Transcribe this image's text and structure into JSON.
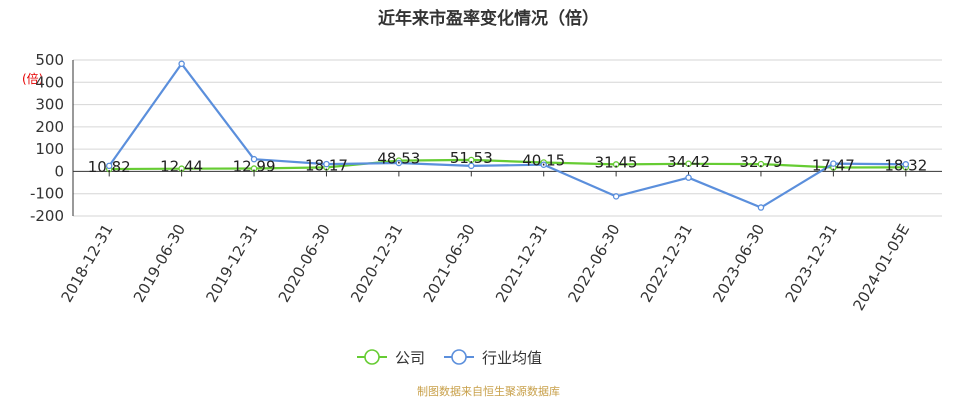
{
  "chart_data": {
    "type": "line",
    "title": "近年来市盈率变化情况（倍）",
    "ylabel": "(倍)",
    "categories": [
      "2018-12-31",
      "2019-06-30",
      "2019-12-31",
      "2020-06-30",
      "2020-12-31",
      "2021-06-30",
      "2021-12-31",
      "2022-06-30",
      "2022-12-31",
      "2023-06-30",
      "2023-12-31",
      "2024-01-05E"
    ],
    "ylim": [
      -200,
      500
    ],
    "yticks": [
      -200,
      -100,
      0,
      100,
      200,
      300,
      400,
      500
    ],
    "grid": true,
    "legend_position": "bottom",
    "series": [
      {
        "name": "公司",
        "color": "#66cc33",
        "values": [
          10.82,
          12.44,
          12.99,
          18.17,
          48.53,
          51.53,
          40.15,
          31.45,
          34.42,
          32.79,
          17.47,
          18.32
        ],
        "labels": [
          "10.82",
          "12.44",
          "12.99",
          "18.17",
          "48.53",
          "51.53",
          "40.15",
          "31.45",
          "34.42",
          "32.79",
          "17.47",
          "18.32"
        ]
      },
      {
        "name": "行业均值",
        "color": "#5b8fdc",
        "values": [
          25,
          483,
          55,
          33,
          38,
          25,
          30,
          -112,
          -28,
          -162,
          35,
          32
        ]
      }
    ]
  },
  "source": "制图数据来自恒生聚源数据库"
}
